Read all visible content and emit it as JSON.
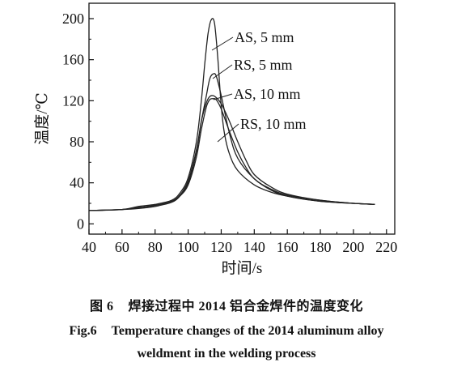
{
  "chart_data": {
    "type": "line",
    "xlabel": "时间/s",
    "ylabel": "温度/℃",
    "xlim": [
      40,
      225
    ],
    "ylim": [
      -10,
      215
    ],
    "x_ticks": [
      "40",
      "60",
      "80",
      "100",
      "120",
      "140",
      "160",
      "180",
      "200",
      "220"
    ],
    "y_ticks": [
      "0",
      "40",
      "80",
      "120",
      "160",
      "200"
    ],
    "series": [
      {
        "name": "AS, 5 mm",
        "points": [
          [
            40,
            13
          ],
          [
            60,
            14
          ],
          [
            70,
            17
          ],
          [
            80,
            19
          ],
          [
            90,
            23
          ],
          [
            95,
            30
          ],
          [
            100,
            45
          ],
          [
            105,
            80
          ],
          [
            108,
            120
          ],
          [
            110,
            155
          ],
          [
            112,
            185
          ],
          [
            114,
            199
          ],
          [
            116,
            195
          ],
          [
            118,
            160
          ],
          [
            120,
            115
          ],
          [
            122,
            88
          ],
          [
            125,
            68
          ],
          [
            130,
            52
          ],
          [
            140,
            38
          ],
          [
            150,
            31
          ],
          [
            160,
            27
          ],
          [
            180,
            22
          ],
          [
            200,
            20
          ],
          [
            213,
            19
          ]
        ]
      },
      {
        "name": "RS, 5 mm",
        "points": [
          [
            40,
            13
          ],
          [
            60,
            14
          ],
          [
            70,
            16
          ],
          [
            80,
            18
          ],
          [
            90,
            22
          ],
          [
            95,
            28
          ],
          [
            100,
            40
          ],
          [
            105,
            70
          ],
          [
            108,
            100
          ],
          [
            111,
            125
          ],
          [
            113,
            141
          ],
          [
            115,
            146
          ],
          [
            117,
            144
          ],
          [
            120,
            125
          ],
          [
            125,
            88
          ],
          [
            130,
            64
          ],
          [
            140,
            44
          ],
          [
            150,
            34
          ],
          [
            160,
            28
          ],
          [
            180,
            23
          ],
          [
            200,
            20
          ],
          [
            213,
            19
          ]
        ]
      },
      {
        "name": "AS, 10 mm",
        "points": [
          [
            40,
            13
          ],
          [
            60,
            14
          ],
          [
            70,
            16
          ],
          [
            80,
            18
          ],
          [
            90,
            22
          ],
          [
            95,
            28
          ],
          [
            100,
            42
          ],
          [
            105,
            72
          ],
          [
            108,
            100
          ],
          [
            111,
            118
          ],
          [
            113,
            124
          ],
          [
            115,
            125
          ],
          [
            117,
            123
          ],
          [
            120,
            117
          ],
          [
            125,
            100
          ],
          [
            130,
            80
          ],
          [
            135,
            62
          ],
          [
            140,
            48
          ],
          [
            150,
            36
          ],
          [
            160,
            29
          ],
          [
            180,
            23
          ],
          [
            200,
            20
          ],
          [
            213,
            19
          ]
        ]
      },
      {
        "name": "RS, 10 mm",
        "points": [
          [
            40,
            13
          ],
          [
            60,
            14
          ],
          [
            70,
            15
          ],
          [
            80,
            17
          ],
          [
            90,
            21
          ],
          [
            95,
            27
          ],
          [
            100,
            38
          ],
          [
            105,
            65
          ],
          [
            108,
            92
          ],
          [
            111,
            114
          ],
          [
            113,
            121
          ],
          [
            115,
            122
          ],
          [
            117,
            121
          ],
          [
            120,
            112
          ],
          [
            125,
            90
          ],
          [
            130,
            70
          ],
          [
            135,
            55
          ],
          [
            140,
            44
          ],
          [
            150,
            33
          ],
          [
            160,
            27
          ],
          [
            180,
            22
          ],
          [
            200,
            20
          ],
          [
            213,
            19
          ]
        ]
      }
    ],
    "annotations": [
      {
        "text": "AS, 5 mm",
        "x_data": 121,
        "y_data": 180
      },
      {
        "text": "RS, 5 mm",
        "x_data": 119,
        "y_data": 135
      },
      {
        "text": "AS, 10 mm",
        "x_data": 119,
        "y_data": 123
      },
      {
        "text": "RS, 10 mm",
        "x_data": 125,
        "y_data": 78
      }
    ],
    "legend": "none"
  },
  "caption": {
    "zh_label": "图 6",
    "zh_text": "焊接过程中 2014 铝合金焊件的温度变化",
    "en_label": "Fig.6",
    "en_text_line1": "Temperature changes of the 2014 aluminum alloy",
    "en_text_line2": "weldment in the welding process"
  },
  "colors": {
    "line": "#222222",
    "axis": "#111111",
    "background": "#ffffff"
  }
}
